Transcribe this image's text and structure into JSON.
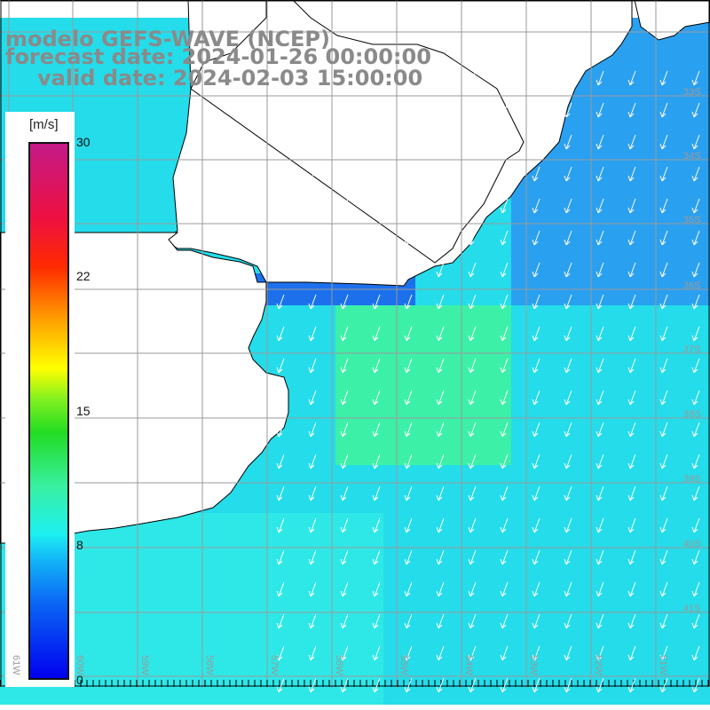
{
  "title": {
    "line1": "modelo GEFS-WAVE (NCEP)",
    "line2": "forecast date: 2024-01-26 00:00:00",
    "line3": "valid date: 2024-02-03 15:00:00"
  },
  "colorbar": {
    "unit": "[m/s]",
    "ticks": [
      "30",
      "22",
      "15",
      "8",
      "0"
    ],
    "tick_values": [
      30,
      22,
      15,
      8,
      0
    ],
    "colors": [
      "#0000ee",
      "#12b4f8",
      "#1ef0f0",
      "#22dc22",
      "#ffff00",
      "#ff2a00",
      "#c41a88"
    ]
  },
  "lon_labels": [
    "61W",
    "60W",
    "59W",
    "58W",
    "57W",
    "56W",
    "55W",
    "54W",
    "53W",
    "52W",
    "51W"
  ],
  "lat_labels": [
    "33S",
    "34S",
    "35S",
    "36S",
    "37S",
    "38S",
    "39S",
    "40S",
    "41S"
  ],
  "colors": {
    "land": "#ffffff",
    "grid": "#9a9a9a",
    "arrow": "#ffffff",
    "title": "#8a8a8a"
  }
}
